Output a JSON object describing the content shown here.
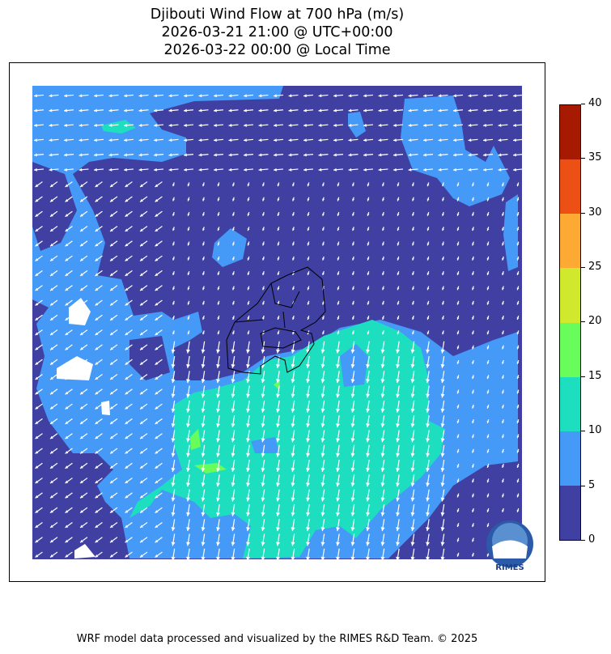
{
  "title": {
    "line1": "Djibouti Wind Flow at 700 hPa (m/s)",
    "line2": "2026-03-21 21:00 @ UTC+00:00",
    "line3": "2026-03-22 00:00 @ Local Time"
  },
  "colorbar": {
    "ticks": [
      "0",
      "5",
      "10",
      "15",
      "20",
      "25",
      "30",
      "35",
      "40"
    ],
    "colors": [
      "#4040a2",
      "#4599f7",
      "#1ddfc0",
      "#68fd5b",
      "#d0e92c",
      "#fdaa35",
      "#ec5014",
      "#a71a02"
    ]
  },
  "logo": {
    "text": "RIMES"
  },
  "footer": "WRF model data processed and visualized by the RIMES R&D Team. © 2025"
}
